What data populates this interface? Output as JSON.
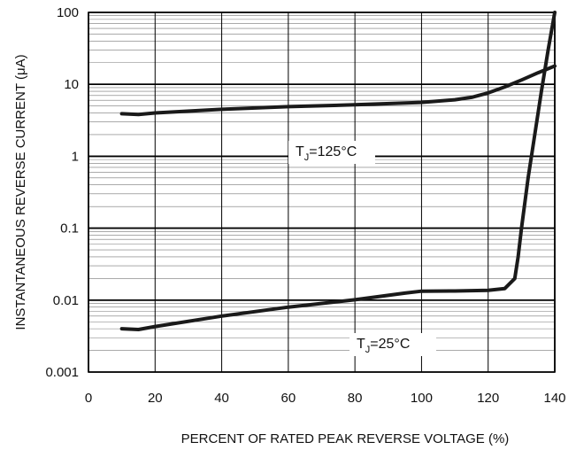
{
  "chart_data": {
    "type": "line",
    "xlabel": "PERCENT OF RATED PEAK REVERSE VOLTAGE (%)",
    "ylabel": "INSTANTANEOUS REVERSE CURRENT (μA)",
    "xlim": [
      0,
      140
    ],
    "ylim": [
      0.001,
      100
    ],
    "y_scale": "log",
    "grid": true,
    "x_ticks": [
      "0",
      "20",
      "40",
      "60",
      "80",
      "100",
      "120",
      "140"
    ],
    "y_ticks": [
      "0.001",
      "0.01",
      "0.1",
      "1",
      "10",
      "100"
    ],
    "series": [
      {
        "name": "TJ=125°C",
        "label_main": "T",
        "label_sub": "J",
        "label_rest": "=125°C",
        "points": [
          [
            10,
            3.9
          ],
          [
            15,
            3.8
          ],
          [
            20,
            4.0
          ],
          [
            40,
            4.5
          ],
          [
            60,
            4.9
          ],
          [
            80,
            5.2
          ],
          [
            100,
            5.6
          ],
          [
            110,
            6.1
          ],
          [
            115,
            6.6
          ],
          [
            120,
            7.6
          ],
          [
            125,
            9.2
          ],
          [
            130,
            11.5
          ],
          [
            135,
            14.5
          ],
          [
            140,
            18
          ]
        ]
      },
      {
        "name": "TJ=25°C",
        "label_main": "T",
        "label_sub": "J",
        "label_rest": "=25°C",
        "points": [
          [
            10,
            0.004
          ],
          [
            15,
            0.0039
          ],
          [
            20,
            0.0043
          ],
          [
            40,
            0.006
          ],
          [
            60,
            0.008
          ],
          [
            80,
            0.0101
          ],
          [
            95,
            0.0125
          ],
          [
            100,
            0.0133
          ],
          [
            110,
            0.0134
          ],
          [
            120,
            0.0137
          ],
          [
            125,
            0.0145
          ],
          [
            128,
            0.02
          ],
          [
            129,
            0.04
          ],
          [
            130,
            0.1
          ],
          [
            132,
            0.5
          ],
          [
            134,
            2
          ],
          [
            136,
            8
          ],
          [
            138,
            30
          ],
          [
            140,
            100
          ]
        ]
      }
    ]
  }
}
